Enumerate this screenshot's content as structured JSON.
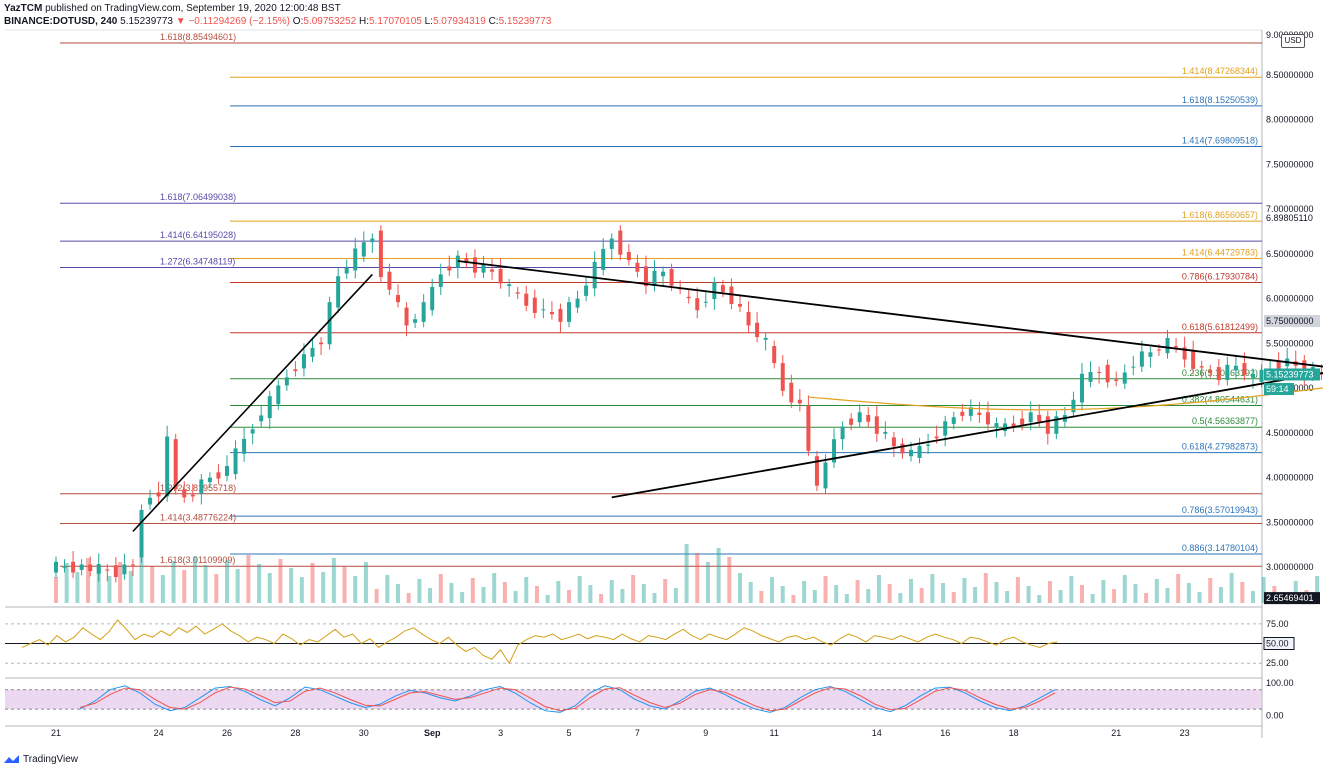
{
  "header": {
    "publisher": "YazTCM",
    "published_text": "published on TradingView.com, September 19, 2020 12:00:48 BST",
    "symbol": "BINANCE:DOTUSD, 240",
    "last": "5.15239773",
    "change": "▼ −0.11294269 (−2.15%)",
    "o_label": "O:",
    "o": "5.09753252",
    "h_label": "H:",
    "h": "5.17070105",
    "l_label": "L:",
    "l": "5.07934319",
    "c_label": "C:",
    "c": "5.15239773"
  },
  "currency": "USD",
  "footer": {
    "logo_text": "TradingView"
  },
  "colors": {
    "up": "#26a69a",
    "down": "#ef5350",
    "bg": "#ffffff",
    "axis_text": "#131722"
  },
  "chart_data": {
    "type": "candlestick",
    "price_ylim": [
      2.6,
      9.0
    ],
    "price_ticks": [
      "9.00000000",
      "8.50000000",
      "8.00000000",
      "7.50000000",
      "7.00000000",
      "6.50000000",
      "6.00000000",
      "5.50000000",
      "5.00000000",
      "4.50000000",
      "4.00000000",
      "3.50000000",
      "3.00000000"
    ],
    "x_ticks": [
      "21",
      "24",
      "26",
      "28",
      "30",
      "Sep",
      "3",
      "5",
      "7",
      "9",
      "11",
      "14",
      "16",
      "18",
      "21",
      "23"
    ],
    "x_tick_index": [
      0,
      12,
      20,
      28,
      36,
      44,
      52,
      60,
      68,
      76,
      84,
      96,
      104,
      112,
      124,
      132
    ],
    "last_bar_index": 120,
    "price_points": [
      [
        0,
        3.0
      ],
      [
        4,
        3.0
      ],
      [
        8,
        2.95
      ],
      [
        10,
        3.05
      ],
      [
        11,
        3.7
      ],
      [
        13,
        3.85
      ],
      [
        14,
        4.4
      ],
      [
        15,
        3.9
      ],
      [
        16,
        3.75
      ],
      [
        18,
        3.95
      ],
      [
        21,
        4.1
      ],
      [
        24,
        4.6
      ],
      [
        26,
        4.85
      ],
      [
        28,
        5.15
      ],
      [
        30,
        5.35
      ],
      [
        32,
        5.55
      ],
      [
        34,
        6.25
      ],
      [
        36,
        6.5
      ],
      [
        38,
        6.7
      ],
      [
        39,
        6.3
      ],
      [
        40,
        6.1
      ],
      [
        42,
        5.7
      ],
      [
        44,
        5.9
      ],
      [
        46,
        6.3
      ],
      [
        48,
        6.45
      ],
      [
        50,
        6.35
      ],
      [
        52,
        6.3
      ],
      [
        54,
        6.1
      ],
      [
        56,
        5.95
      ],
      [
        58,
        5.85
      ],
      [
        60,
        5.8
      ],
      [
        62,
        6.0
      ],
      [
        64,
        6.35
      ],
      [
        66,
        6.7
      ],
      [
        68,
        6.4
      ],
      [
        70,
        6.2
      ],
      [
        72,
        6.3
      ],
      [
        74,
        6.05
      ],
      [
        76,
        5.9
      ],
      [
        78,
        6.15
      ],
      [
        80,
        6.0
      ],
      [
        82,
        5.7
      ],
      [
        84,
        5.5
      ],
      [
        86,
        5.0
      ],
      [
        88,
        4.8
      ],
      [
        89,
        4.3
      ],
      [
        90,
        3.85
      ],
      [
        91,
        4.2
      ],
      [
        93,
        4.6
      ],
      [
        95,
        4.7
      ],
      [
        97,
        4.55
      ],
      [
        99,
        4.35
      ],
      [
        101,
        4.25
      ],
      [
        103,
        4.4
      ],
      [
        105,
        4.6
      ],
      [
        107,
        4.75
      ],
      [
        109,
        4.7
      ],
      [
        111,
        4.55
      ],
      [
        113,
        4.6
      ],
      [
        115,
        4.7
      ],
      [
        117,
        4.55
      ],
      [
        119,
        4.7
      ],
      [
        121,
        5.1
      ],
      [
        123,
        5.2
      ],
      [
        125,
        5.05
      ],
      [
        127,
        5.3
      ],
      [
        129,
        5.4
      ],
      [
        131,
        5.5
      ],
      [
        133,
        5.35
      ],
      [
        135,
        5.2
      ],
      [
        137,
        5.15
      ],
      [
        139,
        5.25
      ],
      [
        141,
        5.1
      ],
      [
        143,
        5.25
      ],
      [
        145,
        5.3
      ],
      [
        147,
        5.2
      ],
      [
        149,
        5.15
      ]
    ],
    "levels": [
      {
        "label": "1.618(8.85494601)",
        "value": 8.85494601,
        "color": "#b34d3d",
        "side": "left"
      },
      {
        "label": "1.414(8.47268344)",
        "value": 8.47268344,
        "color": "#e3a11c",
        "side": "right"
      },
      {
        "label": "1.618(8.15250539)",
        "value": 8.15250539,
        "color": "#2d74b8",
        "side": "right"
      },
      {
        "label": "1.414(7.69809518)",
        "value": 7.69809518,
        "color": "#2d74b8",
        "side": "right"
      },
      {
        "label": "1.618(7.06499038)",
        "value": 7.06499038,
        "color": "#5a4aa8",
        "side": "left"
      },
      {
        "label": "1.618(6.86560657)",
        "value": 6.86560657,
        "color": "#e3a11c",
        "side": "right"
      },
      {
        "label": "1.414(6.64195028)",
        "value": 6.64195028,
        "color": "#5a4aa8",
        "side": "left"
      },
      {
        "label": "1.414(6.44729783)",
        "value": 6.44729783,
        "color": "#e3a11c",
        "side": "right"
      },
      {
        "label": "1.272(6.34748119)",
        "value": 6.34748119,
        "color": "#5a4aa8",
        "side": "left"
      },
      {
        "label": "0.786(6.17930784)",
        "value": 6.17930784,
        "color": "#c0392b",
        "side": "right"
      },
      {
        "label": "0.618(5.61812499)",
        "value": 5.61812499,
        "color": "#c0392b",
        "side": "right"
      },
      {
        "label": "0.236(5.10463192)",
        "value": 5.10463192,
        "color": "#2e8b3a",
        "side": "right"
      },
      {
        "label": "0.382(4.80544631)",
        "value": 4.80544631,
        "color": "#2e8b3a",
        "side": "right"
      },
      {
        "label": "0.5(4.56363877)",
        "value": 4.56363877,
        "color": "#2e8b3a",
        "side": "right"
      },
      {
        "label": "0.618(4.27982873)",
        "value": 4.27982873,
        "color": "#2d74b8",
        "side": "right"
      },
      {
        "label": "1.272(3.81955718)",
        "value": 3.81955718,
        "color": "#b34d3d",
        "side": "left"
      },
      {
        "label": "0.786(3.57019943)",
        "value": 3.57019943,
        "color": "#2d74b8",
        "side": "right"
      },
      {
        "label": "1.414(3.48776224)",
        "value": 3.48776224,
        "color": "#b34d3d",
        "side": "left"
      },
      {
        "label": "0.886(3.14780104)",
        "value": 3.14780104,
        "color": "#2d74b8",
        "side": "right"
      },
      {
        "label": "1.618(3.01109909)",
        "value": 3.01109909,
        "color": "#b34d3d",
        "side": "left"
      }
    ],
    "axis_labels": [
      {
        "text": "6.89805110",
        "value": 6.8980511,
        "style": "plain"
      },
      {
        "text": "5.75000000",
        "value": 5.75,
        "style": "gray"
      },
      {
        "text": "5.15239773",
        "value": 5.15239773,
        "style": "green"
      },
      {
        "text": "59:14",
        "value": 4.99,
        "style": "green"
      },
      {
        "text": "2.65469401",
        "value": 2.65469401,
        "style": "dark"
      }
    ],
    "rsi": {
      "ylim": [
        10,
        90
      ],
      "ticks": [
        "75.00",
        "50.00",
        "25.00"
      ],
      "marker": "50.00",
      "values": [
        45,
        50,
        55,
        48,
        60,
        52,
        58,
        70,
        62,
        55,
        65,
        80,
        68,
        55,
        62,
        58,
        66,
        60,
        70,
        64,
        72,
        62,
        68,
        75,
        66,
        60,
        52,
        58,
        55,
        50,
        62,
        56,
        48,
        55,
        52,
        60,
        68,
        58,
        62,
        50,
        56,
        45,
        52,
        58,
        66,
        70,
        62,
        55,
        50,
        58,
        48,
        40,
        45,
        35,
        30,
        42,
        25,
        48,
        55,
        60,
        58,
        62,
        55,
        58,
        62,
        56,
        60,
        58,
        55,
        62,
        56,
        52,
        60,
        58,
        55,
        62,
        68,
        60,
        55,
        62,
        58,
        55,
        62,
        70,
        66,
        60,
        56,
        52,
        58,
        60,
        55,
        58,
        52,
        48,
        56,
        62,
        58,
        52,
        60,
        58,
        55,
        60,
        56,
        52,
        58,
        62,
        58,
        55,
        50,
        58,
        56,
        52,
        48,
        55,
        58,
        52,
        48,
        45,
        50,
        52
      ]
    },
    "stoch": {
      "ylim": [
        -20,
        110
      ],
      "ticks": [
        "100.00",
        "0.00"
      ],
      "k": [
        20,
        45,
        80,
        92,
        70,
        35,
        15,
        25,
        55,
        85,
        90,
        75,
        50,
        30,
        55,
        88,
        80,
        60,
        40,
        25,
        35,
        60,
        78,
        70,
        55,
        45,
        60,
        80,
        90,
        70,
        40,
        15,
        10,
        30,
        70,
        92,
        80,
        50,
        30,
        20,
        45,
        75,
        85,
        65,
        40,
        20,
        10,
        25,
        55,
        80,
        90,
        75,
        50,
        25,
        12,
        30,
        60,
        85,
        88,
        70,
        45,
        25,
        15,
        30,
        55,
        80
      ],
      "d": [
        25,
        38,
        65,
        85,
        80,
        50,
        25,
        20,
        40,
        70,
        88,
        82,
        62,
        40,
        45,
        75,
        85,
        70,
        50,
        32,
        30,
        50,
        70,
        74,
        62,
        50,
        55,
        70,
        85,
        80,
        55,
        28,
        15,
        22,
        55,
        82,
        86,
        62,
        40,
        25,
        38,
        65,
        80,
        72,
        52,
        30,
        15,
        20,
        45,
        70,
        86,
        82,
        62,
        35,
        18,
        22,
        48,
        75,
        86,
        78,
        55,
        35,
        20,
        25,
        45,
        70
      ]
    }
  }
}
